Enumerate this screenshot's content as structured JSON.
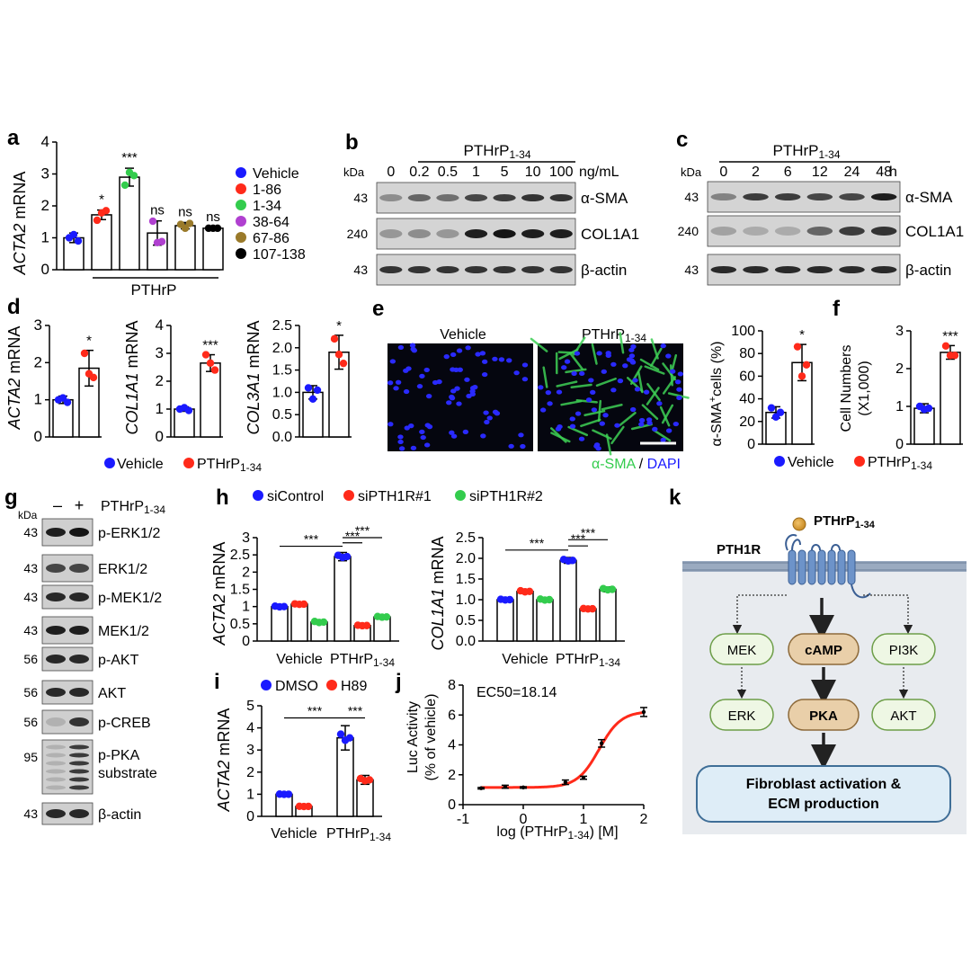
{
  "panel_letters": {
    "a": "a",
    "b": "b",
    "c": "c",
    "d": "d",
    "e": "e",
    "f": "f",
    "g": "g",
    "h": "h",
    "i": "i",
    "j": "j",
    "k": "k"
  },
  "colors": {
    "blue": "#1a1aff",
    "red": "#ff2a1a",
    "green": "#33cc4d",
    "purple": "#b040d0",
    "olive": "#9a7a2a",
    "black": "#000000"
  },
  "panel_a": {
    "ylabel_prefix": "ACTA2",
    "ylabel_suffix": " mRNA",
    "group_label": "PTHrP",
    "legend": [
      {
        "label": "Vehicle",
        "color": "#1a1aff"
      },
      {
        "label": "1-86",
        "color": "#ff2a1a"
      },
      {
        "label": "1-34",
        "color": "#33cc4d"
      },
      {
        "label": "38-64",
        "color": "#b040d0"
      },
      {
        "label": "67-86",
        "color": "#9a7a2a"
      },
      {
        "label": "107-138",
        "color": "#000000"
      }
    ]
  },
  "panel_b": {
    "header": "PTHrP",
    "header_sub": "1-34",
    "kda": "kDa",
    "lanes": [
      "0",
      "0.2",
      "0.5",
      "1",
      "5",
      "10",
      "100"
    ],
    "unit": "ng/mL",
    "rows": [
      {
        "kda": "43",
        "label": "α-SMA"
      },
      {
        "kda": "240",
        "label": "COL1A1"
      },
      {
        "kda": "43",
        "label": "β-actin"
      }
    ]
  },
  "panel_c": {
    "header": "PTHrP",
    "header_sub": "1-34",
    "kda": "kDa",
    "lanes": [
      "0",
      "2",
      "6",
      "12",
      "24",
      "48"
    ],
    "unit": "h",
    "rows": [
      {
        "kda": "43",
        "label": "α-SMA"
      },
      {
        "kda": "240",
        "label": "COL1A1"
      },
      {
        "kda": "43",
        "label": "β-actin"
      }
    ]
  },
  "panel_d": {
    "plots": [
      {
        "ylabel_prefix": "ACTA2",
        "ylabel_suffix": " mRNA",
        "sig": "*"
      },
      {
        "ylabel_prefix": "COL1A1",
        "ylabel_suffix": " mRNA",
        "sig": "***"
      },
      {
        "ylabel_prefix": "COL3A1",
        "ylabel_suffix": " mRNA",
        "sig": "*"
      }
    ],
    "legend": [
      {
        "label": "Vehicle",
        "color": "#1a1aff"
      },
      {
        "label": "PTHrP",
        "sub": "1-34",
        "color": "#ff2a1a"
      }
    ]
  },
  "panel_e": {
    "image_labels": [
      "Vehicle",
      "PTHrP"
    ],
    "image_label_sub": "1-34",
    "stain_a": "α-SMA",
    "stain_sep": " / ",
    "stain_b": "DAPI",
    "ylabel": "α-SMA",
    "ylabel_sup": "+",
    "ylabel_tail": "cells (%)",
    "sig": "*"
  },
  "panel_f": {
    "ylabel_line1": "Cell Numbers",
    "ylabel_line2": "(X1,000)",
    "sig": "***",
    "legend": [
      {
        "label": "Vehicle",
        "color": "#1a1aff"
      },
      {
        "label": "PTHrP",
        "sub": "1-34",
        "color": "#ff2a1a"
      }
    ]
  },
  "panel_g": {
    "kda": "kDa",
    "minus": "–",
    "plus": "+",
    "treatment": "PTHrP",
    "treatment_sub": "1-34",
    "rows": [
      {
        "kda": "43",
        "label": "p-ERK1/2"
      },
      {
        "kda": "43",
        "label": "ERK1/2"
      },
      {
        "kda": "43",
        "label": "p-MEK1/2"
      },
      {
        "kda": "43",
        "label": "MEK1/2"
      },
      {
        "kda": "56",
        "label": "p-AKT"
      },
      {
        "kda": "56",
        "label": "AKT"
      },
      {
        "kda": "56",
        "label": "p-CREB"
      },
      {
        "kda": "95",
        "label": "p-PKA",
        "label2": "substrate"
      },
      {
        "kda": "43",
        "label": "β-actin"
      }
    ]
  },
  "panel_h": {
    "legend": [
      {
        "label": "siControl",
        "color": "#1a1aff"
      },
      {
        "label": "siPTH1R#1",
        "color": "#ff2a1a"
      },
      {
        "label": "siPTH1R#2",
        "color": "#33cc4d"
      }
    ],
    "plots": [
      {
        "ylabel_prefix": "ACTA2",
        "ylabel_suffix": " mRNA"
      },
      {
        "ylabel_prefix": "COL1A1",
        "ylabel_suffix": " mRNA"
      }
    ],
    "xcats": [
      "Vehicle",
      "PTHrP"
    ],
    "xcat_sub": "1-34",
    "sig": "***"
  },
  "panel_i": {
    "legend": [
      {
        "label": "DMSO",
        "color": "#1a1aff"
      },
      {
        "label": "H89",
        "color": "#ff2a1a"
      }
    ],
    "ylabel_prefix": "ACTA2",
    "ylabel_suffix": " mRNA",
    "xcats": [
      "Vehicle",
      "PTHrP"
    ],
    "xcat_sub": "1-34",
    "sig": "***"
  },
  "panel_j": {
    "annotation": "EC50=18.14",
    "ylabel_line1": "Luc Activity",
    "ylabel_line2": "(% of vehicle)",
    "xlabel_pre": "log (PTHrP",
    "xlabel_sub": "1-34",
    "xlabel_post": ") [M]"
  },
  "panel_k": {
    "ligand": "PTHrP",
    "ligand_sub": "1-34",
    "receptor": "PTH1R",
    "nodes": {
      "mek": "MEK",
      "camp": "cAMP",
      "pi3k": "PI3K",
      "erk": "ERK",
      "pka": "PKA",
      "akt": "AKT"
    },
    "outcome_line1": "Fibroblast activation &",
    "outcome_line2": "ECM production"
  },
  "chart_data": [
    {
      "id": "a",
      "type": "bar",
      "categories": [
        "Vehicle",
        "1-86",
        "1-34",
        "38-64",
        "67-86",
        "107-138"
      ],
      "values": [
        1.0,
        1.72,
        2.9,
        1.15,
        1.38,
        1.3
      ],
      "errors": [
        0.15,
        0.15,
        0.28,
        0.38,
        0.1,
        0.03
      ],
      "points": [
        [
          1.0,
          1.1,
          0.9
        ],
        [
          1.55,
          1.78,
          1.85
        ],
        [
          2.65,
          3.05,
          2.95
        ],
        [
          1.52,
          0.85,
          0.88
        ],
        [
          1.42,
          1.3,
          1.45
        ],
        [
          1.3,
          1.3,
          1.3
        ]
      ],
      "annotations": [
        "",
        "*",
        "***",
        "ns",
        "ns",
        "ns"
      ],
      "ylim": [
        0,
        4
      ],
      "yticks": [
        0,
        1,
        2,
        3,
        4
      ],
      "xlabel": "",
      "ylabel": "ACTA2 mRNA"
    },
    {
      "id": "d1",
      "type": "bar",
      "categories": [
        "Vehicle",
        "PTHrP1-34"
      ],
      "values": [
        1.0,
        1.85
      ],
      "errors": [
        0.1,
        0.48
      ],
      "points": [
        [
          1.0,
          1.05,
          0.93
        ],
        [
          2.25,
          1.7,
          1.6
        ]
      ],
      "ylim": [
        0,
        3
      ],
      "yticks": [
        0,
        1,
        2,
        3
      ],
      "ylabel": "ACTA2 mRNA"
    },
    {
      "id": "d2",
      "type": "bar",
      "categories": [
        "Vehicle",
        "PTHrP1-34"
      ],
      "values": [
        1.0,
        2.65
      ],
      "errors": [
        0.08,
        0.3
      ],
      "points": [
        [
          1.0,
          1.05,
          0.95
        ],
        [
          2.95,
          2.65,
          2.4
        ]
      ],
      "ylim": [
        0,
        4
      ],
      "yticks": [
        0,
        1,
        2,
        3,
        4
      ],
      "ylabel": "COL1A1 mRNA"
    },
    {
      "id": "d3",
      "type": "bar",
      "categories": [
        "Vehicle",
        "PTHrP1-34"
      ],
      "values": [
        1.0,
        1.9
      ],
      "errors": [
        0.15,
        0.38
      ],
      "points": [
        [
          1.1,
          0.85,
          1.05
        ],
        [
          2.2,
          1.85,
          1.65
        ]
      ],
      "ylim": [
        0,
        2.5
      ],
      "yticks": [
        0,
        0.5,
        1.0,
        1.5,
        2.0,
        2.5
      ],
      "ylabel": "COL3A1 mRNA"
    },
    {
      "id": "e",
      "type": "bar",
      "categories": [
        "Vehicle",
        "PTHrP1-34"
      ],
      "values": [
        28,
        72
      ],
      "errors": [
        5,
        16
      ],
      "points": [
        [
          32,
          24,
          28
        ],
        [
          86,
          60,
          70
        ]
      ],
      "ylim": [
        0,
        100
      ],
      "yticks": [
        0,
        20,
        40,
        60,
        80,
        100
      ],
      "ylabel": "α-SMA+cells (%)"
    },
    {
      "id": "f",
      "type": "bar",
      "categories": [
        "Vehicle",
        "PTHrP1-34"
      ],
      "values": [
        0.95,
        2.43
      ],
      "errors": [
        0.12,
        0.18
      ],
      "points": [
        [
          1.0,
          0.92,
          0.95
        ],
        [
          2.6,
          2.35,
          2.35
        ]
      ],
      "ylim": [
        0,
        3
      ],
      "yticks": [
        0,
        1,
        2,
        3
      ],
      "ylabel": "Cell Numbers (X1,000)"
    },
    {
      "id": "h1",
      "type": "bar",
      "categories": [
        "Vehicle",
        "PTHrP1-34"
      ],
      "series": [
        {
          "name": "siControl",
          "values": [
            1.0,
            2.45
          ],
          "errors": [
            0.04,
            0.12
          ]
        },
        {
          "name": "siPTH1R#1",
          "values": [
            1.07,
            0.45
          ],
          "errors": [
            0.03,
            0.03
          ]
        },
        {
          "name": "siPTH1R#2",
          "values": [
            0.55,
            0.7
          ],
          "errors": [
            0.06,
            0.04
          ]
        }
      ],
      "ylim": [
        0,
        3
      ],
      "yticks": [
        0,
        0.5,
        1,
        1.5,
        2,
        2.5,
        3
      ],
      "ylabel": "ACTA2 mRNA"
    },
    {
      "id": "h2",
      "type": "bar",
      "categories": [
        "Vehicle",
        "PTHrP1-34"
      ],
      "series": [
        {
          "name": "siControl",
          "values": [
            1.0,
            1.95
          ],
          "errors": [
            0.03,
            0.07
          ]
        },
        {
          "name": "siPTH1R#1",
          "values": [
            1.2,
            0.78
          ],
          "errors": [
            0.05,
            0.02
          ]
        },
        {
          "name": "siPTH1R#2",
          "values": [
            1.0,
            1.25
          ],
          "errors": [
            0.05,
            0.06
          ]
        }
      ],
      "ylim": [
        0,
        2.5
      ],
      "yticks": [
        0,
        0.5,
        1.0,
        1.5,
        2.0,
        2.5
      ],
      "ylabel": "COL1A1 mRNA"
    },
    {
      "id": "i",
      "type": "bar",
      "categories": [
        "Vehicle",
        "PTHrP1-34"
      ],
      "series": [
        {
          "name": "DMSO",
          "values": [
            1.0,
            3.55
          ],
          "errors": [
            0.02,
            0.55
          ]
        },
        {
          "name": "H89",
          "values": [
            0.45,
            1.65
          ],
          "errors": [
            0.02,
            0.2
          ]
        }
      ],
      "ylim": [
        0,
        5
      ],
      "yticks": [
        0,
        1,
        2,
        3,
        4,
        5
      ],
      "ylabel": "ACTA2 mRNA"
    },
    {
      "id": "j",
      "type": "line",
      "x": [
        -0.7,
        -0.3,
        0,
        0.7,
        1,
        1.3,
        2
      ],
      "y": [
        1.1,
        1.2,
        1.15,
        1.5,
        1.8,
        4.1,
        6.2
      ],
      "errors": [
        0.05,
        0.1,
        0.05,
        0.15,
        0.1,
        0.25,
        0.3
      ],
      "fit": {
        "bottom": 1.15,
        "top": 6.25,
        "logEC50": 1.259,
        "hill": 2.4
      },
      "xlim": [
        -1,
        2
      ],
      "ylim": [
        0,
        8
      ],
      "xticks": [
        -1,
        0,
        1,
        2
      ],
      "yticks": [
        0,
        2,
        4,
        6,
        8
      ],
      "xlabel": "log (PTHrP1-34) [M]",
      "ylabel": "Luc Activity (% of vehicle)"
    }
  ]
}
